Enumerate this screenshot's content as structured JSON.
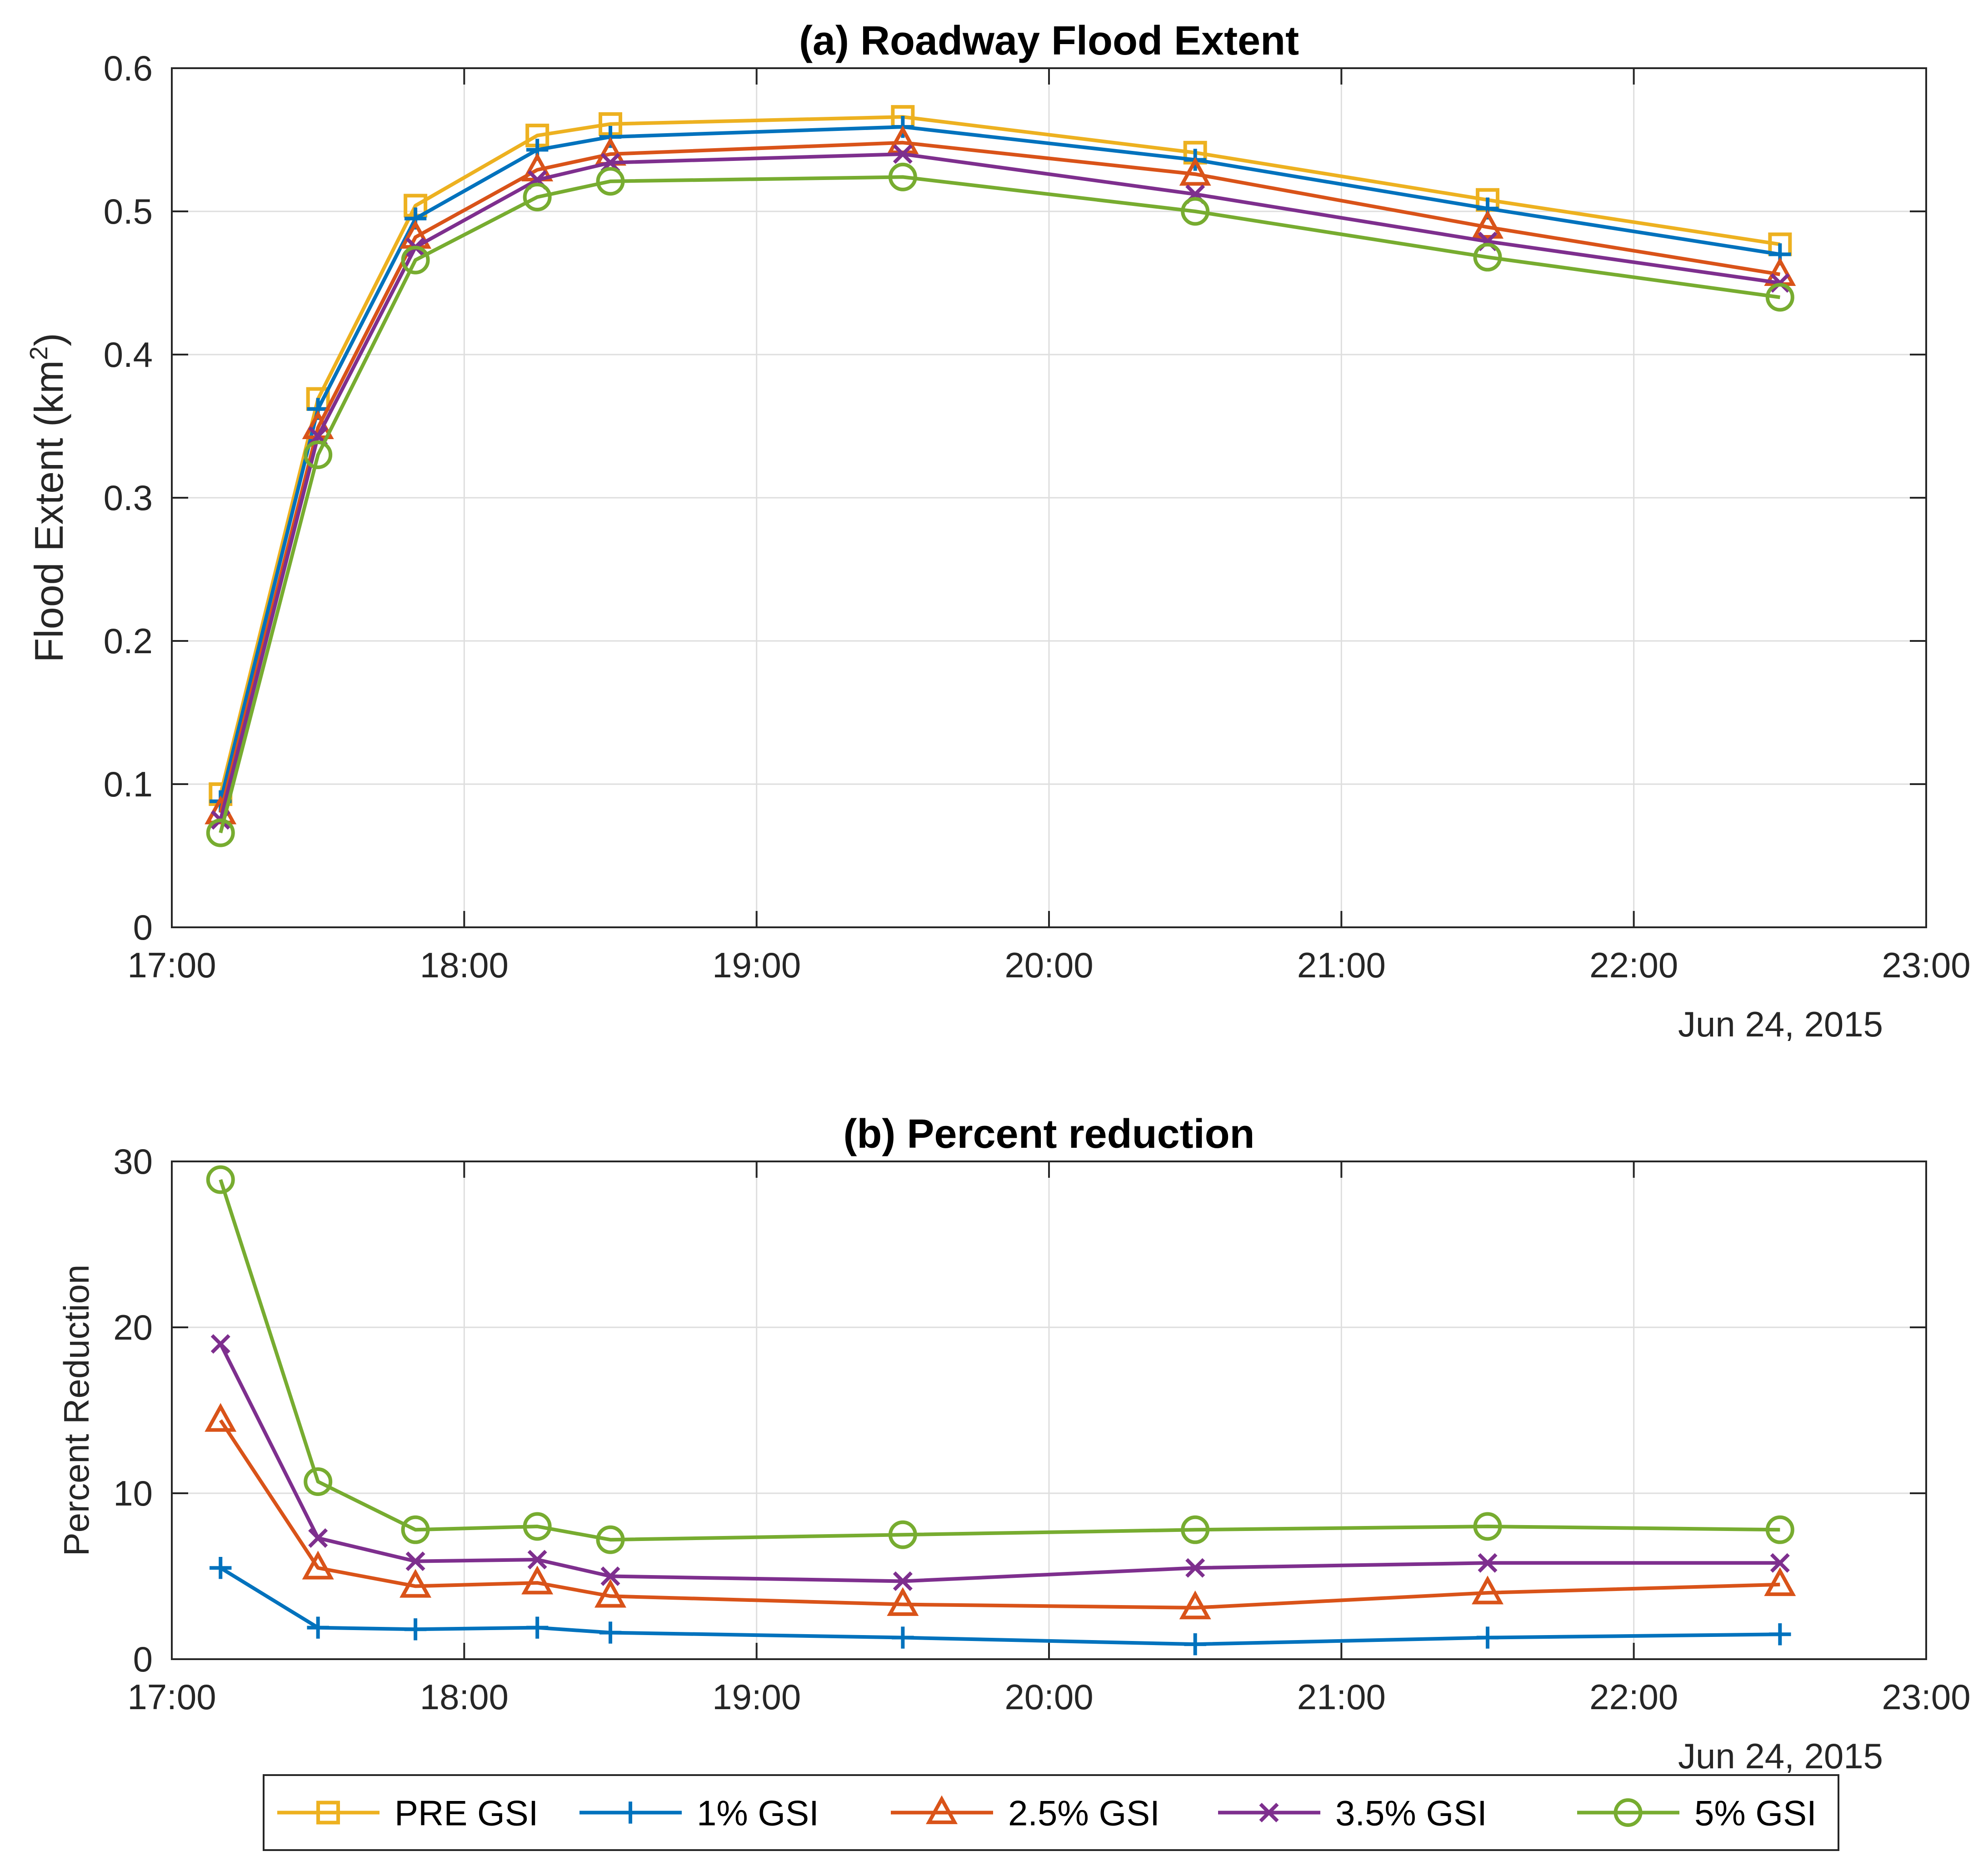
{
  "chart_data": [
    {
      "type": "line",
      "title": "(a) Roadway Flood Extent",
      "xlabel": "",
      "ylabel": "Flood Extent (km",
      "ylabel_sup": "2",
      "ylabel_close": ")",
      "date_label": "Jun 24, 2015",
      "grid": true,
      "xlim": [
        17.0,
        23.0
      ],
      "ylim": [
        0,
        0.6
      ],
      "x_ticks": [
        17,
        18,
        19,
        20,
        21,
        22,
        23
      ],
      "x_tick_labels": [
        "17:00",
        "18:00",
        "19:00",
        "20:00",
        "21:00",
        "22:00",
        "23:00"
      ],
      "y_ticks": [
        0,
        0.1,
        0.2,
        0.3,
        0.4,
        0.5,
        0.6
      ],
      "y_tick_labels": [
        "0",
        "0.1",
        "0.2",
        "0.3",
        "0.4",
        "0.5",
        "0.6"
      ],
      "x": [
        17.1667,
        17.5,
        17.8333,
        18.25,
        18.5,
        19.5,
        20.5,
        21.5,
        22.5
      ],
      "series": [
        {
          "name": "PRE GSI",
          "values": [
            0.093,
            0.369,
            0.504,
            0.553,
            0.561,
            0.566,
            0.541,
            0.508,
            0.477
          ]
        },
        {
          "name": "1% GSI",
          "values": [
            0.088,
            0.362,
            0.495,
            0.543,
            0.552,
            0.559,
            0.536,
            0.502,
            0.47
          ]
        },
        {
          "name": "2.5% GSI",
          "values": [
            0.08,
            0.349,
            0.482,
            0.529,
            0.54,
            0.548,
            0.526,
            0.489,
            0.456
          ]
        },
        {
          "name": "3.5% GSI",
          "values": [
            0.075,
            0.343,
            0.475,
            0.522,
            0.534,
            0.54,
            0.512,
            0.479,
            0.45
          ]
        },
        {
          "name": "5% GSI",
          "values": [
            0.066,
            0.33,
            0.466,
            0.51,
            0.521,
            0.524,
            0.5,
            0.468,
            0.44
          ]
        }
      ]
    },
    {
      "type": "line",
      "title": "(b) Percent reduction",
      "xlabel": "",
      "ylabel": "Percent Reduction",
      "date_label": "Jun 24, 2015",
      "grid": true,
      "xlim": [
        17.0,
        23.0
      ],
      "ylim": [
        0,
        30
      ],
      "x_ticks": [
        17,
        18,
        19,
        20,
        21,
        22,
        23
      ],
      "x_tick_labels": [
        "17:00",
        "18:00",
        "19:00",
        "20:00",
        "21:00",
        "22:00",
        "23:00"
      ],
      "y_ticks": [
        0,
        10,
        20,
        30
      ],
      "y_tick_labels": [
        "0",
        "10",
        "20",
        "30"
      ],
      "x": [
        17.1667,
        17.5,
        17.8333,
        18.25,
        18.5,
        19.5,
        20.5,
        21.5,
        22.5
      ],
      "series": [
        {
          "name": "1% GSI",
          "values": [
            5.5,
            1.9,
            1.8,
            1.9,
            1.6,
            1.3,
            0.9,
            1.3,
            1.5
          ]
        },
        {
          "name": "2.5% GSI",
          "values": [
            14.4,
            5.5,
            4.4,
            4.6,
            3.8,
            3.3,
            3.1,
            4.0,
            4.5
          ]
        },
        {
          "name": "3.5% GSI",
          "values": [
            19.0,
            7.3,
            5.9,
            6.0,
            5.0,
            4.7,
            5.5,
            5.8,
            5.8
          ]
        },
        {
          "name": "5% GSI",
          "values": [
            28.9,
            10.7,
            7.8,
            8.0,
            7.2,
            7.5,
            7.8,
            8.0,
            7.8
          ]
        }
      ]
    }
  ],
  "legend": {
    "placement": "bottom",
    "entries": [
      {
        "label": "PRE GSI",
        "color": "#EDB120",
        "marker": "square"
      },
      {
        "label": "1% GSI",
        "color": "#0072BD",
        "marker": "plus"
      },
      {
        "label": "2.5% GSI",
        "color": "#D95319",
        "marker": "triangle"
      },
      {
        "label": "3.5% GSI",
        "color": "#7E2F8E",
        "marker": "x"
      },
      {
        "label": "5% GSI",
        "color": "#77AC30",
        "marker": "circle"
      }
    ]
  }
}
